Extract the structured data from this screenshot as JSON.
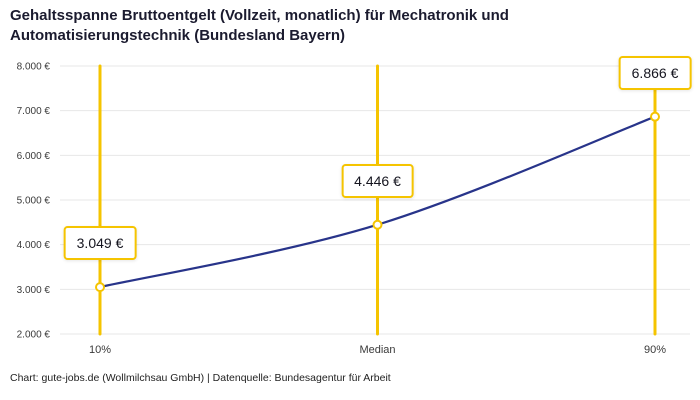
{
  "header": {
    "title": "Gehaltsspanne Bruttoentgelt (Vollzeit, monatlich) für Mechatronik und Automatisierungstechnik (Bundesland Bayern)"
  },
  "footer": {
    "source": "Chart: gute-jobs.de (Wollmilchsau GmbH) | Datenquelle: Bundesagentur für Arbeit"
  },
  "chart_data": {
    "type": "line",
    "title": "Gehaltsspanne Bruttoentgelt (Vollzeit, monatlich) für Mechatronik und Automatisierungstechnik (Bundesland Bayern)",
    "categories": [
      "10%",
      "Median",
      "90%"
    ],
    "values": [
      3049,
      4446,
      6866
    ],
    "point_labels": [
      "3.049 €",
      "4.446 €",
      "6.866 €"
    ],
    "ylim": [
      2000,
      8000
    ],
    "yticks": [
      2000,
      3000,
      4000,
      5000,
      6000,
      7000,
      8000
    ],
    "ytick_labels": [
      "2.000 €",
      "3.000 €",
      "4.000 €",
      "5.000 €",
      "6.000 €",
      "7.000 €",
      "8.000 €"
    ],
    "grid": true,
    "legend": false,
    "xlabel": "",
    "ylabel": "",
    "colors": {
      "line": "#28348a",
      "accent": "#f5c400",
      "grid": "#e7e7e7",
      "tick_text": "#3a3a3a"
    }
  }
}
